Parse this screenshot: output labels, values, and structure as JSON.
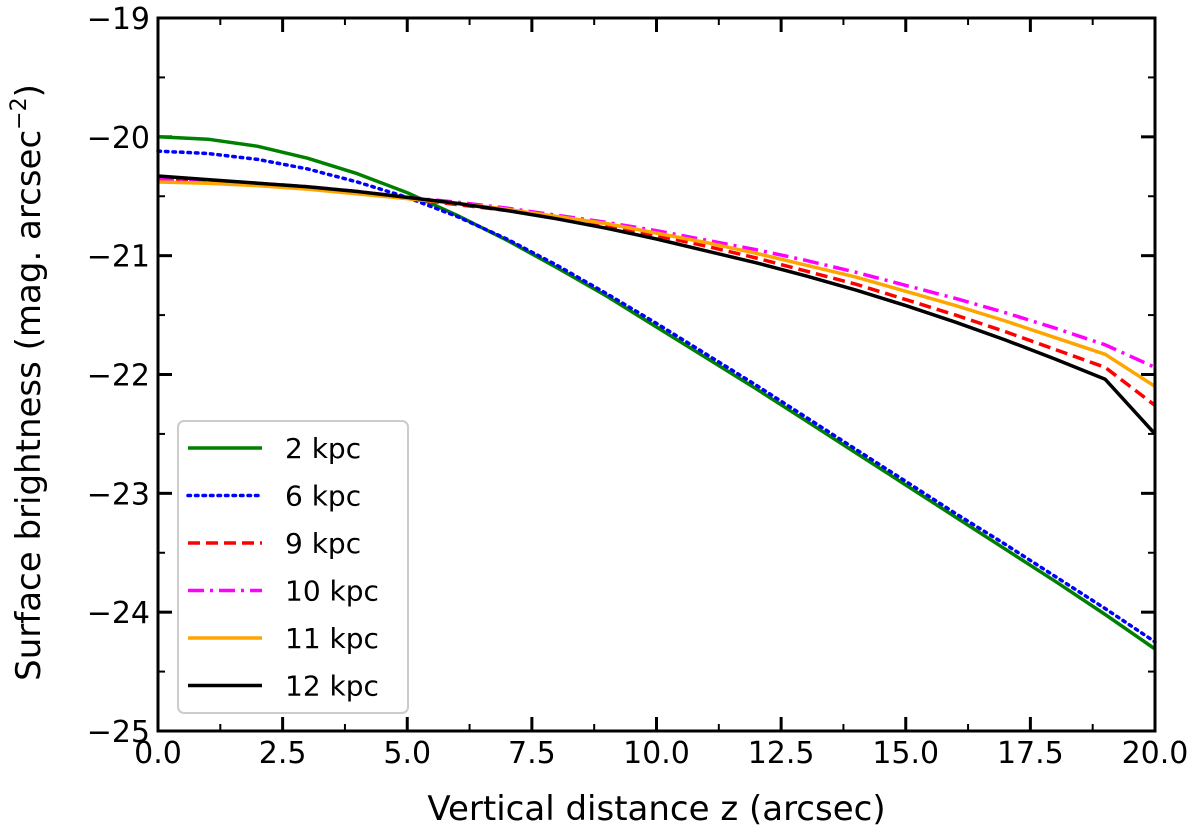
{
  "chart_data": {
    "type": "line",
    "title": "",
    "xlabel": "Vertical distance z (arcsec)",
    "ylabel": "Surface brightness (mag. arcsec",
    "ylabel_sup": "−2",
    "ylabel_close": ")",
    "xlim": [
      0,
      20
    ],
    "ylim": [
      -25,
      -19
    ],
    "x_ticks": [
      0,
      2.5,
      5,
      7.5,
      10,
      12.5,
      15,
      17.5,
      20
    ],
    "x_tick_labels": [
      "0.0",
      "2.5",
      "5.0",
      "7.5",
      "10.0",
      "12.5",
      "15.0",
      "17.5",
      "20.0"
    ],
    "y_ticks": [
      -25,
      -24,
      -23,
      -22,
      -21,
      -20,
      -19
    ],
    "y_tick_labels": [
      "−25",
      "−24",
      "−23",
      "−22",
      "−21",
      "−20",
      "−19"
    ],
    "grid": false,
    "legend_position": "lower-left",
    "x": [
      0,
      1,
      2,
      3,
      4,
      5,
      6,
      7,
      8,
      9,
      10,
      11,
      12,
      13,
      14,
      15,
      16,
      17,
      18,
      19,
      20
    ],
    "series": [
      {
        "name": "2 kpc",
        "color": "#008000",
        "style": "solid",
        "values": [
          -20.0,
          -20.02,
          -20.08,
          -20.18,
          -20.31,
          -20.47,
          -20.66,
          -20.87,
          -21.1,
          -21.34,
          -21.6,
          -21.86,
          -22.12,
          -22.39,
          -22.66,
          -22.93,
          -23.2,
          -23.47,
          -23.74,
          -24.02,
          -24.31
        ]
      },
      {
        "name": "6 kpc",
        "color": "#0000ff",
        "style": "dotted",
        "values": [
          -20.12,
          -20.14,
          -20.19,
          -20.27,
          -20.38,
          -20.51,
          -20.67,
          -20.86,
          -21.08,
          -21.32,
          -21.57,
          -21.83,
          -22.09,
          -22.36,
          -22.63,
          -22.9,
          -23.17,
          -23.43,
          -23.7,
          -23.97,
          -24.25
        ]
      },
      {
        "name": "9 kpc",
        "color": "#ff0000",
        "style": "dashed",
        "values": [
          -20.36,
          -20.37,
          -20.4,
          -20.43,
          -20.47,
          -20.52,
          -20.57,
          -20.62,
          -20.68,
          -20.75,
          -20.83,
          -20.92,
          -21.02,
          -21.13,
          -21.24,
          -21.37,
          -21.5,
          -21.64,
          -21.79,
          -21.94,
          -22.26
        ]
      },
      {
        "name": "10 kpc",
        "color": "#ff00ff",
        "style": "dashdot",
        "values": [
          -20.35,
          -20.37,
          -20.39,
          -20.42,
          -20.46,
          -20.51,
          -20.55,
          -20.6,
          -20.66,
          -20.72,
          -20.79,
          -20.87,
          -20.95,
          -21.04,
          -21.14,
          -21.25,
          -21.36,
          -21.48,
          -21.61,
          -21.75,
          -21.94
        ]
      },
      {
        "name": "11 kpc",
        "color": "#ffa500",
        "style": "solid",
        "values": [
          -20.38,
          -20.39,
          -20.41,
          -20.44,
          -20.48,
          -20.52,
          -20.56,
          -20.61,
          -20.67,
          -20.73,
          -20.81,
          -20.89,
          -20.98,
          -21.08,
          -21.18,
          -21.3,
          -21.42,
          -21.55,
          -21.69,
          -21.83,
          -22.1
        ]
      },
      {
        "name": "12 kpc",
        "color": "#000000",
        "style": "solid",
        "values": [
          -20.33,
          -20.36,
          -20.39,
          -20.42,
          -20.46,
          -20.51,
          -20.56,
          -20.62,
          -20.69,
          -20.77,
          -20.86,
          -20.96,
          -21.06,
          -21.17,
          -21.29,
          -21.42,
          -21.56,
          -21.71,
          -21.87,
          -22.04,
          -22.5
        ]
      }
    ]
  }
}
